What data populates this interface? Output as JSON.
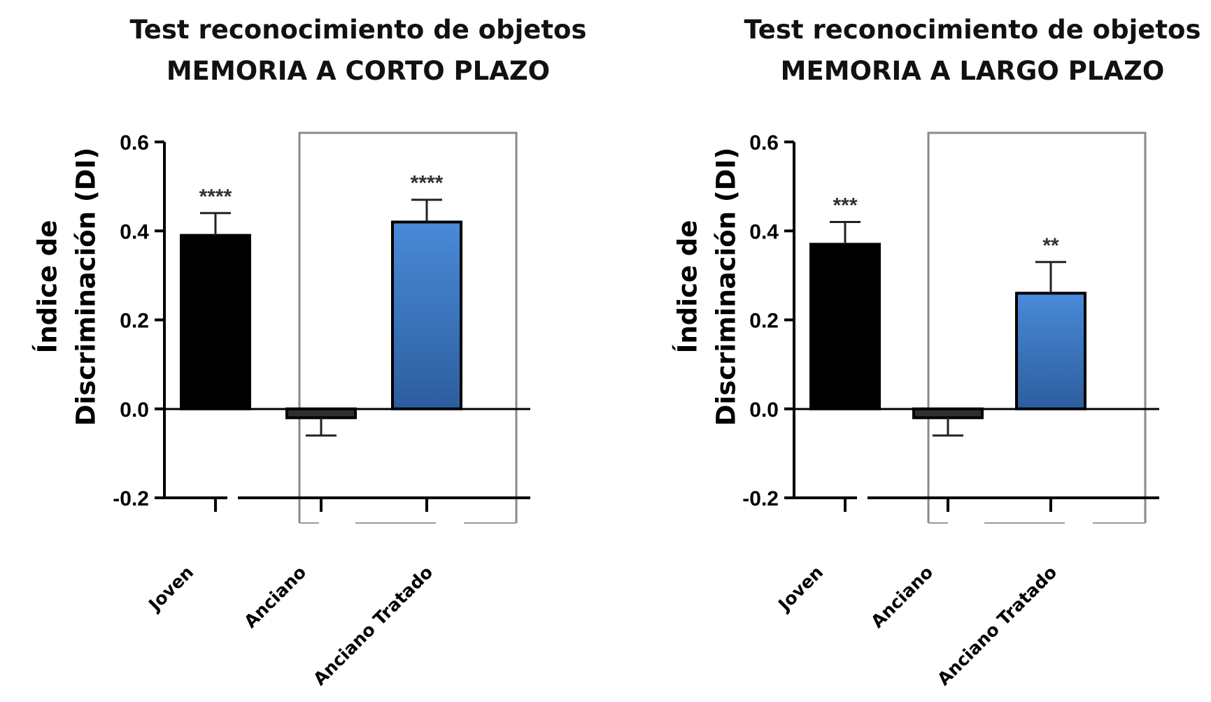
{
  "chart_data": [
    {
      "type": "bar",
      "title": "Test reconocimiento de objetos",
      "subtitle": "MEMORIA A CORTO PLAZO",
      "ylabel": [
        "Índice de",
        "Discriminación (DI)"
      ],
      "xlabel": "",
      "categories": [
        "Joven",
        "Anciano",
        "Anciano Tratado"
      ],
      "values": [
        0.39,
        -0.02,
        0.42
      ],
      "errors": [
        0.05,
        0.04,
        0.05
      ],
      "significance": [
        "****",
        "",
        "****"
      ],
      "colors": [
        "#000000",
        "#2f2f2f",
        "#3f7fcf"
      ],
      "ylim": [
        -0.2,
        0.6
      ],
      "yticks": [
        "0.6",
        "0.4",
        "0.2",
        "0.0",
        "-0.2"
      ],
      "ytick_values": [
        0.6,
        0.4,
        0.2,
        0.0,
        -0.2
      ],
      "grid": false,
      "legend": "none"
    },
    {
      "type": "bar",
      "title": "Test reconocimiento de objetos",
      "subtitle": "MEMORIA A LARGO PLAZO",
      "ylabel": [
        "Índice de",
        "Discriminación (DI)"
      ],
      "xlabel": "",
      "categories": [
        "Joven",
        "Anciano",
        "Anciano Tratado"
      ],
      "values": [
        0.37,
        -0.02,
        0.26
      ],
      "errors": [
        0.05,
        0.04,
        0.07
      ],
      "significance": [
        "***",
        "",
        "**"
      ],
      "colors": [
        "#000000",
        "#2f2f2f",
        "#3f7fcf"
      ],
      "ylim": [
        -0.2,
        0.6
      ],
      "yticks": [
        "0.6",
        "0.4",
        "0.2",
        "0.0",
        "-0.2"
      ],
      "ytick_values": [
        0.6,
        0.4,
        0.2,
        0.0,
        -0.2
      ],
      "grid": false,
      "legend": "none"
    }
  ]
}
